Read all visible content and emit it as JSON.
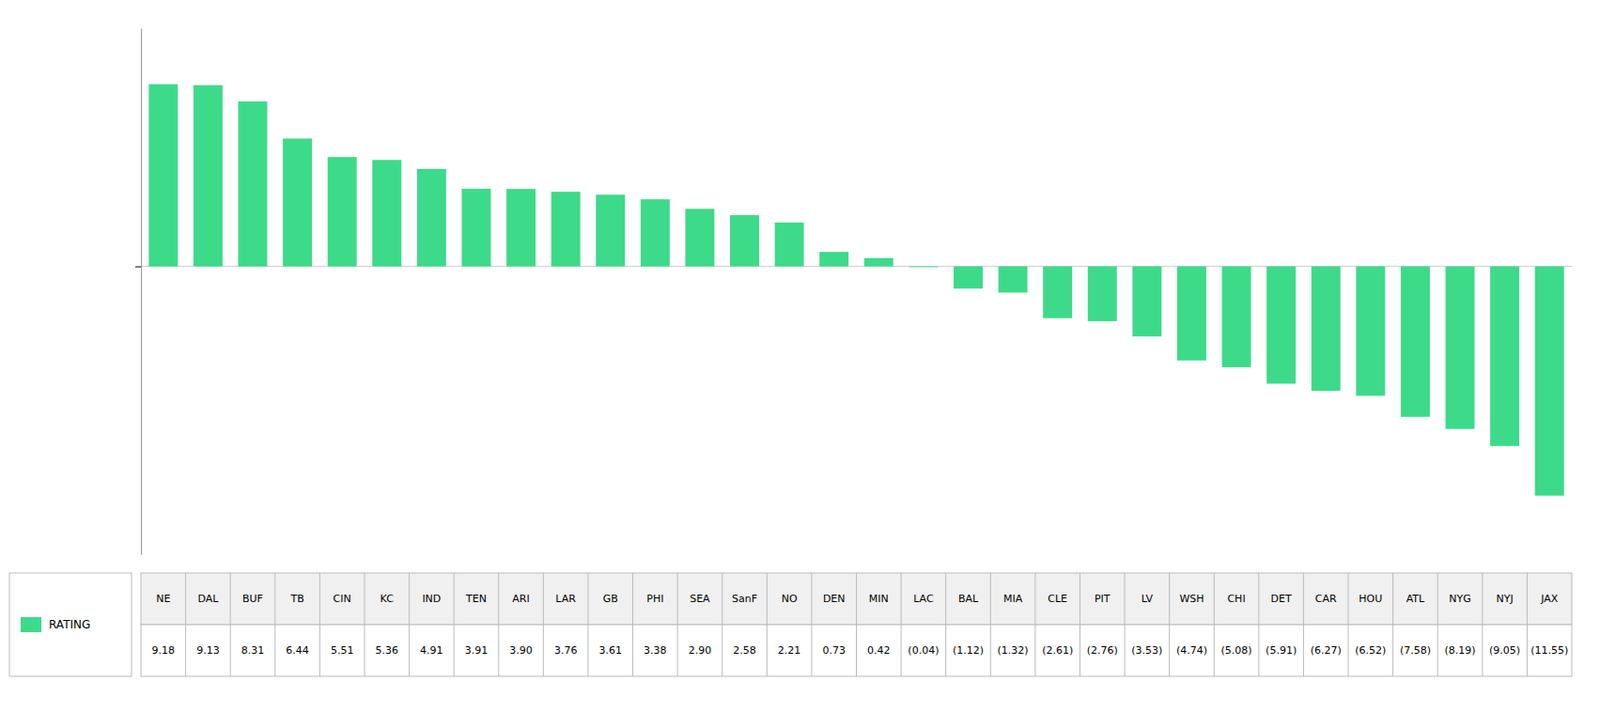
{
  "chart_data": {
    "type": "bar",
    "categories": [
      "NE",
      "DAL",
      "BUF",
      "TB",
      "CIN",
      "KC",
      "IND",
      "TEN",
      "ARI",
      "LAR",
      "GB",
      "PHI",
      "SEA",
      "SanF",
      "NO",
      "DEN",
      "MIN",
      "LAC",
      "BAL",
      "MIA",
      "CLE",
      "PIT",
      "LV",
      "WSH",
      "CHI",
      "DET",
      "CAR",
      "HOU",
      "ATL",
      "NYG",
      "NYJ",
      "JAX"
    ],
    "series": [
      {
        "name": "RATING",
        "color": "#3DDA8A",
        "values": [
          9.18,
          9.13,
          8.31,
          6.44,
          5.51,
          5.36,
          4.91,
          3.91,
          3.9,
          3.76,
          3.61,
          3.38,
          2.9,
          2.58,
          2.21,
          0.73,
          0.42,
          -0.04,
          -1.12,
          -1.32,
          -2.61,
          -2.76,
          -3.53,
          -4.74,
          -5.08,
          -5.91,
          -6.27,
          -6.52,
          -7.58,
          -8.19,
          -9.05,
          -11.55
        ],
        "value_labels": [
          "9.18",
          "9.13",
          "8.31",
          "6.44",
          "5.51",
          "5.36",
          "4.91",
          "3.91",
          "3.90",
          "3.76",
          "3.61",
          "3.38",
          "2.90",
          "2.58",
          "2.21",
          "0.73",
          "0.42",
          "(0.04)",
          "(1.12)",
          "(1.32)",
          "(2.61)",
          "(2.76)",
          "(3.53)",
          "(4.74)",
          "(5.08)",
          "(5.91)",
          "(6.27)",
          "(6.52)",
          "(7.58)",
          "(8.19)",
          "(9.05)",
          "(11.55)"
        ]
      }
    ],
    "ylim": [
      -14.5,
      12.0
    ],
    "yticks": [
      0
    ],
    "grid": false,
    "tick_labels": false,
    "data_labels": true,
    "legend": "lower left"
  }
}
